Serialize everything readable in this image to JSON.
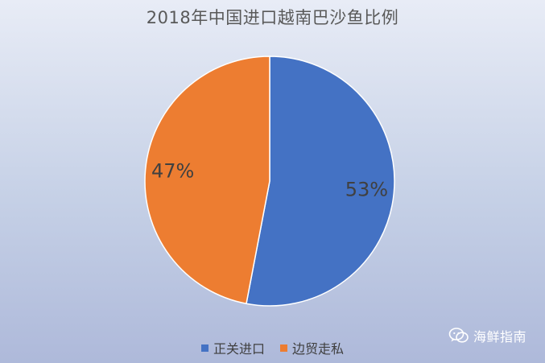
{
  "chart_data": {
    "type": "pie",
    "title": "2018年中国进口越南巴沙鱼比例",
    "categories": [
      "正关进口",
      "边贸走私"
    ],
    "values": [
      53,
      47
    ],
    "labels": [
      "53%",
      "47%"
    ],
    "colors": [
      "#4472C4",
      "#ED7D31"
    ],
    "legend_position": "bottom"
  },
  "watermark": {
    "text": "海鲜指南"
  }
}
